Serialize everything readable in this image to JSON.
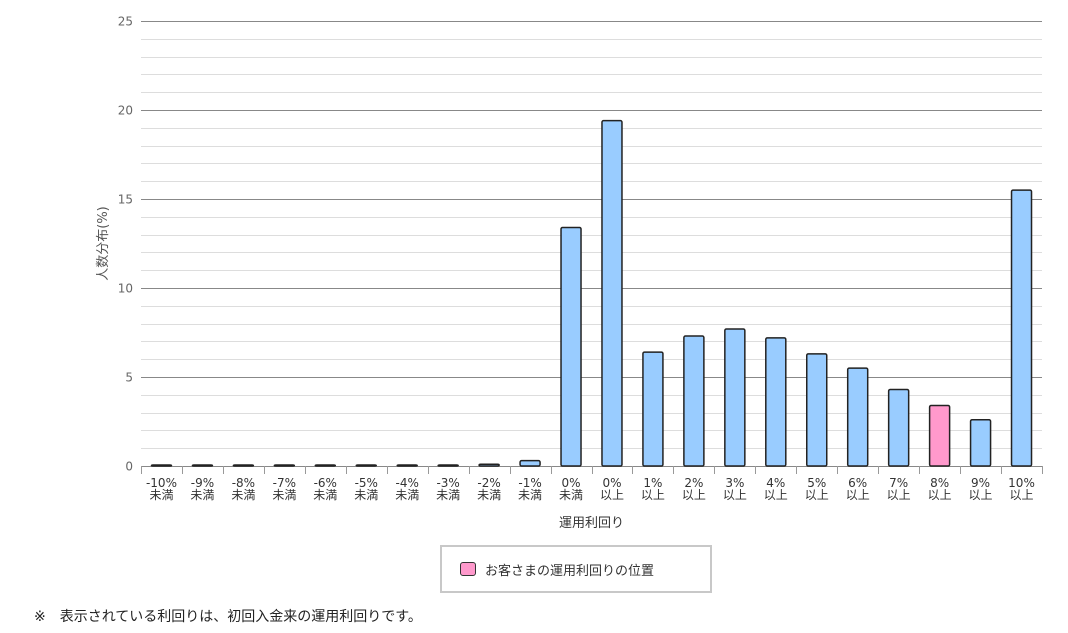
{
  "chart_data": {
    "type": "bar",
    "categories": [
      [
        "-10%",
        "未満"
      ],
      [
        "-9%",
        "未満"
      ],
      [
        "-8%",
        "未満"
      ],
      [
        "-7%",
        "未満"
      ],
      [
        "-6%",
        "未満"
      ],
      [
        "-5%",
        "未満"
      ],
      [
        "-4%",
        "未満"
      ],
      [
        "-3%",
        "未満"
      ],
      [
        "-2%",
        "未満"
      ],
      [
        "-1%",
        "未満"
      ],
      [
        "0%",
        "未満"
      ],
      [
        "0%",
        "以上"
      ],
      [
        "1%",
        "以上"
      ],
      [
        "2%",
        "以上"
      ],
      [
        "3%",
        "以上"
      ],
      [
        "4%",
        "以上"
      ],
      [
        "5%",
        "以上"
      ],
      [
        "6%",
        "以上"
      ],
      [
        "7%",
        "以上"
      ],
      [
        "8%",
        "以上"
      ],
      [
        "9%",
        "以上"
      ],
      [
        "10%",
        "以上"
      ]
    ],
    "values": [
      0.0,
      0.0,
      0.0,
      0.0,
      0.0,
      0.0,
      0.0,
      0.03,
      0.1,
      0.3,
      13.4,
      19.4,
      6.4,
      7.3,
      7.7,
      7.2,
      6.3,
      5.5,
      4.3,
      3.4,
      2.6,
      15.5
    ],
    "highlight_index": 19,
    "xlabel": "運用利回り",
    "ylabel": "人数分布(%)",
    "ylim": [
      0,
      25
    ],
    "yticks": [
      0,
      5,
      10,
      15,
      20,
      25
    ],
    "minor_step": 1,
    "grid": true,
    "colors": {
      "bar": "#99ccff",
      "highlight": "#ff99cc",
      "outline": "#222222",
      "major_grid": "#888888",
      "minor_grid": "#dddddd"
    },
    "legend": {
      "label": "お客さまの運用利回りの位置",
      "color": "#ff99cc",
      "placement": "bottom-center"
    }
  },
  "footnote": "※　表示されている利回りは、初回入金来の運用利回りです。"
}
